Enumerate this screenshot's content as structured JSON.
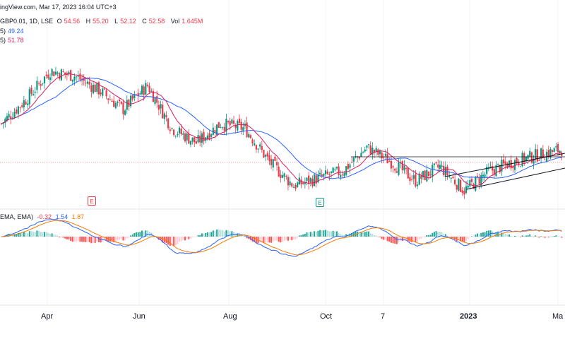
{
  "header": {
    "line1": "ingView.com, Mar 17, 2023 16:04 UTC+3",
    "ticker": "GBP0.01, 1D, LSE",
    "o_label": "O",
    "o_val": "54.56",
    "h_label": "H",
    "h_val": "55.20",
    "l_label": "L",
    "l_val": "52.12",
    "c_label": "C",
    "c_val": "52.58",
    "vol_label": "Vol",
    "vol_val": "1.645M",
    "ma1_prefix": "5)",
    "ma1_val": "49.24",
    "ma2_prefix": "5)",
    "ma2_val": "51.78",
    "macd_prefix": "EMA, EMA)",
    "macd_hist": "-0.32",
    "macd_line": "1.54",
    "macd_signal": "1.87"
  },
  "earnings": {
    "e1": "E",
    "e2": "E"
  },
  "colors": {
    "up": "#089981",
    "down": "#f23645",
    "ma_fast": "#d81b60",
    "ma_slow": "#2962ff",
    "macd": "#2962ff",
    "signal": "#f57c00"
  },
  "chart_data": {
    "type": "candlestick",
    "interval": "1D",
    "x_tick_labels": [
      "Apr",
      "Jun",
      "Aug",
      "Oct",
      "7",
      "2023",
      "Ma"
    ],
    "price_path": [
      [
        "start",
        57.5
      ],
      [
        "Mar-10",
        60.0
      ],
      [
        "Mar-20",
        63.0
      ],
      [
        "Apr-01",
        62.5
      ],
      [
        "Apr-20",
        61.0
      ],
      [
        "May-10",
        59.0
      ],
      [
        "Jun-01",
        61.5
      ],
      [
        "Jun-20",
        57.0
      ],
      [
        "Jul-05",
        55.5
      ],
      [
        "Aug-01",
        57.5
      ],
      [
        "Aug-20",
        57.0
      ],
      [
        "Sep-05",
        53.5
      ],
      [
        "Sep-30",
        51.0
      ],
      [
        "Oct-15",
        51.8
      ],
      [
        "Nov-01",
        52.5
      ],
      [
        "Nov-10",
        55.0
      ],
      [
        "Nov-20",
        53.5
      ],
      [
        "Dec-05",
        51.5
      ],
      [
        "Dec-20",
        53.0
      ],
      [
        "Jan-10",
        50.5
      ],
      [
        "Jan-20",
        52.5
      ],
      [
        "Feb-10",
        53.5
      ],
      [
        "Mar-01",
        54.2
      ],
      [
        "Mar-17",
        54.8
      ]
    ],
    "last_values": {
      "open": 54.56,
      "high": 55.2,
      "low": 52.12,
      "close": 52.58,
      "volume": "1.645M"
    },
    "moving_averages": [
      {
        "name": "MA fast",
        "last": 49.24
      },
      {
        "name": "MA slow",
        "last": 51.78
      }
    ],
    "macd": {
      "histogram": -0.32,
      "macd": 1.54,
      "signal": 1.87
    },
    "annotations": [
      "horizontal resistance line",
      "ascending channel",
      "earnings markers E"
    ]
  }
}
